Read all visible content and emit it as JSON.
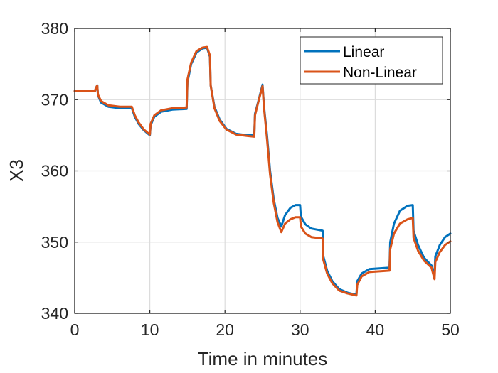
{
  "chart_data": {
    "type": "line",
    "title": "",
    "xlabel": "Time in minutes",
    "ylabel": "X3",
    "xlim": [
      0,
      50
    ],
    "ylim": [
      340,
      380
    ],
    "xticks": [
      0,
      10,
      20,
      30,
      40,
      50
    ],
    "yticks": [
      340,
      350,
      360,
      370,
      380
    ],
    "xtick_labels": [
      "0",
      "10",
      "20",
      "30",
      "40",
      "50"
    ],
    "ytick_labels": [
      "340",
      "350",
      "360",
      "370",
      "380"
    ],
    "grid": true,
    "legend_position": "top-right",
    "series": [
      {
        "name": "Linear",
        "color": "#0072BD",
        "points": [
          [
            0,
            371.2
          ],
          [
            2.7,
            371.2
          ],
          [
            2.8,
            371.6
          ],
          [
            3.0,
            372.0
          ],
          [
            3.1,
            370.6
          ],
          [
            3.5,
            369.6
          ],
          [
            4.5,
            369.0
          ],
          [
            6,
            368.8
          ],
          [
            7.6,
            368.8
          ],
          [
            8.0,
            367.6
          ],
          [
            8.5,
            366.6
          ],
          [
            9.2,
            365.7
          ],
          [
            10.0,
            365.0
          ],
          [
            10.1,
            366.4
          ],
          [
            10.6,
            367.6
          ],
          [
            11.5,
            368.3
          ],
          [
            13,
            368.6
          ],
          [
            14.9,
            368.7
          ],
          [
            15.0,
            372.4
          ],
          [
            15.5,
            375.0
          ],
          [
            16.2,
            376.6
          ],
          [
            17.0,
            377.2
          ],
          [
            17.6,
            377.3
          ],
          [
            18.0,
            376.0
          ],
          [
            18.1,
            372.0
          ],
          [
            18.6,
            369.0
          ],
          [
            19.3,
            367.2
          ],
          [
            20.2,
            365.9
          ],
          [
            21.5,
            365.2
          ],
          [
            23,
            365.0
          ],
          [
            23.9,
            365.0
          ],
          [
            24.0,
            368.0
          ],
          [
            24.5,
            370.0
          ],
          [
            25.0,
            372.1
          ],
          [
            25.2,
            369.0
          ],
          [
            25.6,
            365.0
          ],
          [
            26.0,
            360.0
          ],
          [
            26.5,
            356.0
          ],
          [
            27.0,
            353.4
          ],
          [
            27.5,
            352.2
          ],
          [
            28.0,
            353.8
          ],
          [
            28.7,
            354.8
          ],
          [
            29.4,
            355.2
          ],
          [
            30.0,
            355.2
          ],
          [
            30.1,
            353.6
          ],
          [
            30.7,
            352.5
          ],
          [
            31.5,
            351.9
          ],
          [
            33.0,
            351.6
          ],
          [
            33.1,
            348.0
          ],
          [
            33.6,
            346.0
          ],
          [
            34.3,
            344.5
          ],
          [
            35.2,
            343.4
          ],
          [
            36.3,
            342.9
          ],
          [
            37.5,
            342.6
          ],
          [
            37.6,
            344.5
          ],
          [
            38.2,
            345.6
          ],
          [
            39.2,
            346.2
          ],
          [
            41.9,
            346.4
          ],
          [
            42.0,
            350.0
          ],
          [
            42.5,
            352.6
          ],
          [
            43.3,
            354.4
          ],
          [
            44.3,
            355.1
          ],
          [
            45.0,
            355.2
          ],
          [
            45.1,
            351.6
          ],
          [
            45.7,
            349.6
          ],
          [
            46.5,
            347.8
          ],
          [
            47.5,
            346.7
          ],
          [
            47.9,
            345.4
          ],
          [
            48.0,
            348.0
          ],
          [
            48.6,
            349.6
          ],
          [
            49.3,
            350.7
          ],
          [
            50.0,
            351.2
          ]
        ]
      },
      {
        "name": "Non-Linear",
        "color": "#D95319",
        "points": [
          [
            0,
            371.2
          ],
          [
            2.7,
            371.2
          ],
          [
            2.8,
            371.6
          ],
          [
            3.0,
            372.0
          ],
          [
            3.1,
            370.7
          ],
          [
            3.5,
            369.8
          ],
          [
            4.5,
            369.2
          ],
          [
            6,
            369.0
          ],
          [
            7.6,
            369.0
          ],
          [
            8.0,
            367.8
          ],
          [
            8.5,
            366.8
          ],
          [
            9.2,
            365.8
          ],
          [
            10.0,
            365.1
          ],
          [
            10.1,
            366.6
          ],
          [
            10.6,
            367.8
          ],
          [
            11.5,
            368.5
          ],
          [
            13,
            368.8
          ],
          [
            14.9,
            368.9
          ],
          [
            15.0,
            372.8
          ],
          [
            15.5,
            375.2
          ],
          [
            16.2,
            376.8
          ],
          [
            17.0,
            377.3
          ],
          [
            17.6,
            377.4
          ],
          [
            18.0,
            376.2
          ],
          [
            18.1,
            372.0
          ],
          [
            18.6,
            368.8
          ],
          [
            19.3,
            367.0
          ],
          [
            20.2,
            365.8
          ],
          [
            21.5,
            365.1
          ],
          [
            23,
            364.9
          ],
          [
            23.9,
            364.8
          ],
          [
            24.0,
            367.8
          ],
          [
            24.5,
            369.9
          ],
          [
            25.0,
            371.9
          ],
          [
            25.2,
            368.8
          ],
          [
            25.6,
            364.5
          ],
          [
            26.0,
            359.5
          ],
          [
            26.5,
            355.5
          ],
          [
            27.0,
            352.8
          ],
          [
            27.5,
            351.4
          ],
          [
            28.0,
            352.6
          ],
          [
            28.7,
            353.2
          ],
          [
            29.4,
            353.5
          ],
          [
            30.0,
            353.5
          ],
          [
            30.1,
            352.2
          ],
          [
            30.7,
            351.2
          ],
          [
            31.5,
            350.7
          ],
          [
            33.0,
            350.5
          ],
          [
            33.1,
            347.5
          ],
          [
            33.6,
            345.6
          ],
          [
            34.3,
            344.2
          ],
          [
            35.2,
            343.2
          ],
          [
            36.3,
            342.8
          ],
          [
            37.5,
            342.5
          ],
          [
            37.6,
            344.0
          ],
          [
            38.2,
            345.2
          ],
          [
            39.2,
            345.8
          ],
          [
            41.9,
            346.0
          ],
          [
            42.0,
            349.0
          ],
          [
            42.5,
            351.2
          ],
          [
            43.3,
            352.6
          ],
          [
            44.3,
            353.2
          ],
          [
            45.0,
            353.4
          ],
          [
            45.1,
            350.6
          ],
          [
            45.7,
            348.8
          ],
          [
            46.5,
            347.4
          ],
          [
            47.5,
            346.4
          ],
          [
            47.9,
            344.8
          ],
          [
            48.0,
            347.2
          ],
          [
            48.6,
            348.6
          ],
          [
            49.3,
            349.6
          ],
          [
            50.0,
            350.1
          ]
        ]
      }
    ]
  }
}
